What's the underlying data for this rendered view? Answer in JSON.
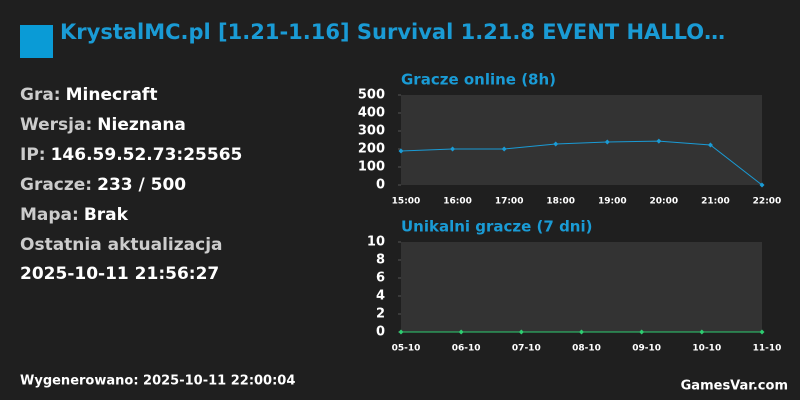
{
  "header": {
    "title": "KrystalMC.pl [1.21-1.16] Survival 1.21.8 EVENT HALLO…"
  },
  "info": [
    {
      "label": "Gra:",
      "value": "Minecraft"
    },
    {
      "label": "Wersja:",
      "value": "Nieznana"
    },
    {
      "label": "IP:",
      "value": "146.59.52.73:25565"
    },
    {
      "label": "Gracze:",
      "value": "233 / 500"
    },
    {
      "label": "Mapa:",
      "value": "Brak"
    }
  ],
  "updated": {
    "label": "Ostatnia aktualizacja",
    "value": "2025-10-11 21:56:27"
  },
  "footer": {
    "generated": "Wygenerowano: 2025-10-11 22:00:04",
    "brand": "GamesVar.com"
  },
  "chart_data": [
    {
      "type": "line",
      "title": "Gracze online (8h)",
      "categories": [
        "15:00",
        "16:00",
        "17:00",
        "18:00",
        "19:00",
        "20:00",
        "21:00",
        "22:00"
      ],
      "values": [
        189,
        200,
        200,
        228,
        239,
        244,
        222,
        0
      ],
      "color": "#1a9bd5",
      "ylim": [
        0,
        500
      ],
      "yticks": [
        0,
        100,
        200,
        300,
        400,
        500
      ],
      "grid": false
    },
    {
      "type": "line",
      "title": "Unikalni gracze (7 dni)",
      "categories": [
        "05-10",
        "06-10",
        "07-10",
        "08-10",
        "09-10",
        "10-10",
        "11-10"
      ],
      "values": [
        0,
        0,
        0,
        0,
        0,
        0,
        0
      ],
      "color": "#2ecc71",
      "ylim": [
        0,
        10
      ],
      "yticks": [
        0,
        2,
        4,
        6,
        8,
        10
      ],
      "grid": false
    }
  ]
}
